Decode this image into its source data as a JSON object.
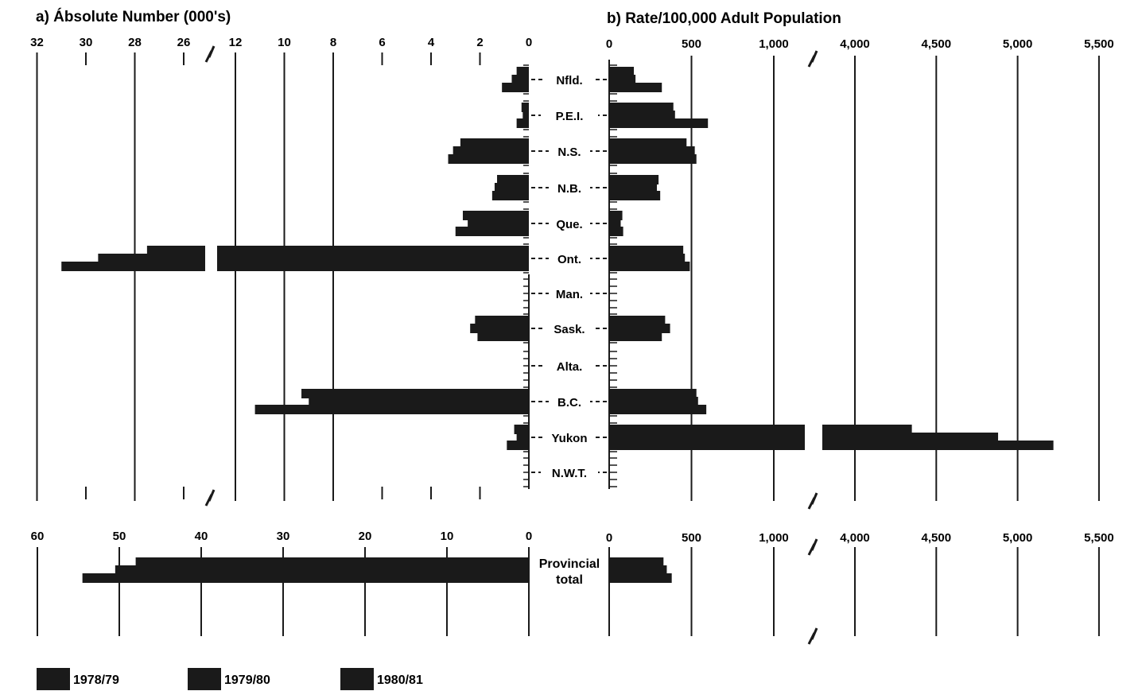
{
  "chart_data": [
    {
      "type": "bar",
      "title": "a) Absolute Number (000's)",
      "orientation": "horizontal",
      "categories": [
        "Nfld.",
        "P.E.I.",
        "N.S.",
        "N.B.",
        "Que.",
        "Ont.",
        "Man.",
        "Sask.",
        "Alta.",
        "B.C.",
        "Yukon",
        "N.W.T."
      ],
      "axis_ticks": [
        "32",
        "30",
        "28",
        "26",
        "12",
        "10",
        "8",
        "6",
        "4",
        "2",
        "0"
      ],
      "axis_break": "between 12 and 26",
      "series": [
        {
          "name": "1978/79",
          "values": [
            0.5,
            0.3,
            2.8,
            1.3,
            2.7,
            27.5,
            null,
            2.2,
            null,
            9.3,
            0.6,
            null
          ]
        },
        {
          "name": "1979/80",
          "values": [
            0.7,
            0.25,
            3.1,
            1.4,
            2.5,
            29.5,
            null,
            2.4,
            null,
            9.0,
            0.5,
            null
          ]
        },
        {
          "name": "1980/81",
          "values": [
            1.1,
            0.5,
            3.3,
            1.5,
            3.0,
            31.0,
            null,
            2.1,
            null,
            11.2,
            0.9,
            null
          ]
        }
      ]
    },
    {
      "type": "bar",
      "title": "b) Rate/100,000 Adult Population",
      "orientation": "horizontal",
      "categories": [
        "Nfld.",
        "P.E.I.",
        "N.S.",
        "N.B.",
        "Que.",
        "Ont.",
        "Man.",
        "Sask.",
        "Alta.",
        "B.C.",
        "Yukon",
        "N.W.T."
      ],
      "axis_ticks": [
        "0",
        "500",
        "1,000",
        "4,000",
        "4,500",
        "5,000",
        "5,500"
      ],
      "axis_break": "between 1,000 and 4,000",
      "series": [
        {
          "name": "1978/79",
          "values": [
            150,
            390,
            470,
            300,
            80,
            450,
            null,
            340,
            null,
            530,
            4350,
            null
          ]
        },
        {
          "name": "1979/80",
          "values": [
            160,
            400,
            520,
            290,
            70,
            460,
            null,
            370,
            null,
            540,
            4880,
            null
          ]
        },
        {
          "name": "1980/81",
          "values": [
            320,
            600,
            530,
            310,
            85,
            490,
            null,
            320,
            null,
            590,
            5220,
            null
          ]
        }
      ]
    },
    {
      "type": "bar",
      "title": "",
      "orientation": "horizontal",
      "categories": [
        "Provincial total"
      ],
      "axis_ticks_left": [
        "60",
        "50",
        "40",
        "30",
        "20",
        "10",
        "0"
      ],
      "axis_ticks_right": [
        "0",
        "500",
        "1,000",
        "4,000",
        "4,500",
        "5,000",
        "5,500"
      ],
      "series": [
        {
          "name": "1978/79",
          "values_absolute": [
            48
          ],
          "values_rate": [
            330
          ]
        },
        {
          "name": "1979/80",
          "values_absolute": [
            50.5
          ],
          "values_rate": [
            350
          ]
        },
        {
          "name": "1980/81",
          "values_absolute": [
            54.5
          ],
          "values_rate": [
            380
          ]
        }
      ]
    }
  ],
  "labels": {
    "title_left": "a) Ábsolute Number  (000's)",
    "title_right": "b) Rate/100,000 Adult Population",
    "provincial_line1": "Provincial",
    "provincial_line2": "total"
  },
  "legend": [
    {
      "label": "1978/79"
    },
    {
      "label": "1979/80"
    },
    {
      "label": "1980/81"
    }
  ]
}
